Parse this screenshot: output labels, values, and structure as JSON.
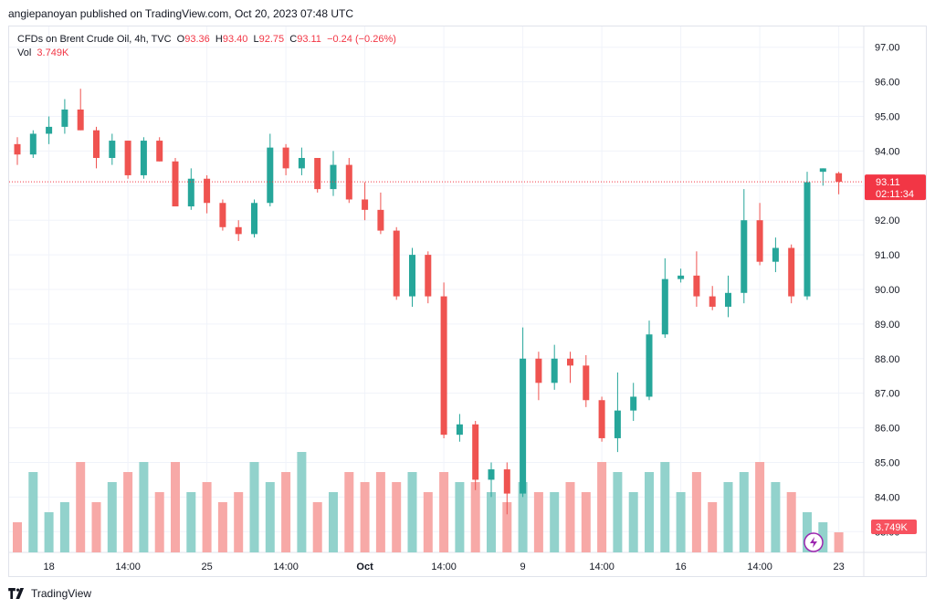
{
  "header": {
    "published_text": "angiepanoyan published on TradingView.com, Oct 20, 2023 07:48 UTC"
  },
  "legend": {
    "symbol": "CFDs on Brent Crude Oil, 4h, TVC",
    "o_label": "O",
    "o_value": "93.36",
    "h_label": "H",
    "h_value": "93.40",
    "l_label": "L",
    "l_value": "92.75",
    "c_label": "C",
    "c_value": "93.11",
    "change": "−0.24 (−0.26%)",
    "vol_label": "Vol",
    "vol_value": "3.749K"
  },
  "price_badge": {
    "price": "93.11",
    "countdown": "02:11:34"
  },
  "volume_badge": {
    "value": "3.749K"
  },
  "footer": {
    "brand": "TradingView"
  },
  "colors": {
    "up": "#26a69a",
    "down": "#ef5350",
    "up_vol": "#92d2cc",
    "down_vol": "#f7a9a7",
    "grid": "#f0f3fa",
    "last_line": "#f23645"
  },
  "icons": {
    "lightning": "lightning-icon",
    "logo": "tradingview-logo-icon"
  },
  "chart_data": {
    "type": "candlestick",
    "timeframe": "4h",
    "y_ticks": [
      "97.00",
      "96.00",
      "95.00",
      "94.00",
      "93.00",
      "92.00",
      "91.00",
      "90.00",
      "89.00",
      "88.00",
      "87.00",
      "86.00",
      "85.00",
      "84.00",
      "83.00"
    ],
    "ylim": [
      82.4,
      97.6
    ],
    "x_ticks": [
      {
        "label": "18",
        "index": 2
      },
      {
        "label": "14:00",
        "index": 7
      },
      {
        "label": "25",
        "index": 12
      },
      {
        "label": "14:00",
        "index": 17
      },
      {
        "label": "Oct",
        "index": 22,
        "bold": true
      },
      {
        "label": "14:00",
        "index": 27
      },
      {
        "label": "9",
        "index": 32
      },
      {
        "label": "14:00",
        "index": 37
      },
      {
        "label": "16",
        "index": 42
      },
      {
        "label": "14:00",
        "index": 47
      },
      {
        "label": "23",
        "index": 52
      }
    ],
    "last_price": 93.11,
    "candles": [
      [
        94.2,
        94.4,
        93.6,
        93.9,
        0.3
      ],
      [
        93.9,
        94.6,
        93.8,
        94.5,
        0.8
      ],
      [
        94.5,
        95.0,
        94.2,
        94.7,
        0.4
      ],
      [
        94.7,
        95.5,
        94.5,
        95.2,
        0.5
      ],
      [
        95.2,
        95.8,
        94.6,
        94.6,
        0.9
      ],
      [
        94.6,
        94.7,
        93.5,
        93.8,
        0.5
      ],
      [
        93.8,
        94.5,
        93.6,
        94.3,
        0.7
      ],
      [
        94.3,
        94.3,
        93.2,
        93.3,
        0.8
      ],
      [
        93.3,
        94.4,
        93.2,
        94.3,
        0.9
      ],
      [
        94.3,
        94.4,
        93.7,
        93.7,
        0.6
      ],
      [
        93.7,
        93.8,
        92.4,
        92.4,
        0.9
      ],
      [
        92.4,
        93.5,
        92.3,
        93.2,
        0.6
      ],
      [
        93.2,
        93.3,
        92.2,
        92.5,
        0.7
      ],
      [
        92.5,
        92.6,
        91.7,
        91.8,
        0.5
      ],
      [
        91.8,
        92.0,
        91.4,
        91.6,
        0.6
      ],
      [
        91.6,
        92.6,
        91.5,
        92.5,
        0.9
      ],
      [
        92.5,
        94.5,
        92.4,
        94.1,
        0.7
      ],
      [
        94.1,
        94.2,
        93.3,
        93.5,
        0.8
      ],
      [
        93.5,
        94.1,
        93.3,
        93.8,
        1.0
      ],
      [
        93.8,
        93.8,
        92.8,
        92.9,
        0.5
      ],
      [
        92.9,
        94.0,
        92.7,
        93.6,
        0.6
      ],
      [
        93.6,
        93.8,
        92.5,
        92.6,
        0.8
      ],
      [
        92.6,
        93.1,
        92.0,
        92.3,
        0.7
      ],
      [
        92.3,
        92.8,
        91.6,
        91.7,
        0.8
      ],
      [
        91.7,
        91.8,
        89.7,
        89.8,
        0.7
      ],
      [
        89.8,
        91.2,
        89.5,
        91.0,
        0.8
      ],
      [
        91.0,
        91.1,
        89.6,
        89.8,
        0.6
      ],
      [
        89.8,
        90.2,
        85.7,
        85.8,
        0.8
      ],
      [
        85.8,
        86.4,
        85.6,
        86.1,
        0.7
      ],
      [
        86.1,
        86.2,
        84.2,
        84.5,
        0.7
      ],
      [
        84.5,
        85.0,
        84.0,
        84.8,
        0.6
      ],
      [
        84.8,
        85.0,
        83.5,
        84.1,
        0.5
      ],
      [
        84.1,
        88.9,
        84.0,
        88.0,
        0.7
      ],
      [
        88.0,
        88.2,
        86.8,
        87.3,
        0.6
      ],
      [
        87.3,
        88.4,
        87.1,
        88.0,
        0.6
      ],
      [
        88.0,
        88.2,
        87.3,
        87.8,
        0.7
      ],
      [
        87.8,
        88.1,
        86.6,
        86.8,
        0.6
      ],
      [
        86.8,
        86.9,
        85.6,
        85.7,
        0.9
      ],
      [
        85.7,
        87.6,
        85.3,
        86.5,
        0.8
      ],
      [
        86.5,
        87.3,
        86.2,
        86.9,
        0.6
      ],
      [
        86.9,
        89.1,
        86.8,
        88.7,
        0.8
      ],
      [
        88.7,
        90.9,
        88.6,
        90.3,
        0.9
      ],
      [
        90.3,
        90.6,
        90.2,
        90.4,
        0.6
      ],
      [
        90.4,
        91.1,
        89.5,
        89.8,
        0.8
      ],
      [
        89.8,
        90.1,
        89.4,
        89.5,
        0.5
      ],
      [
        89.5,
        90.4,
        89.2,
        89.9,
        0.7
      ],
      [
        89.9,
        92.9,
        89.6,
        92.0,
        0.8
      ],
      [
        92.0,
        92.5,
        90.7,
        90.8,
        0.9
      ],
      [
        90.8,
        91.5,
        90.5,
        91.2,
        0.7
      ],
      [
        91.2,
        91.3,
        89.6,
        89.8,
        0.6
      ],
      [
        89.8,
        93.4,
        89.7,
        93.1,
        0.4
      ],
      [
        93.4,
        93.5,
        93.0,
        93.5,
        0.3
      ],
      [
        93.36,
        93.4,
        92.75,
        93.11,
        0.2
      ]
    ]
  }
}
